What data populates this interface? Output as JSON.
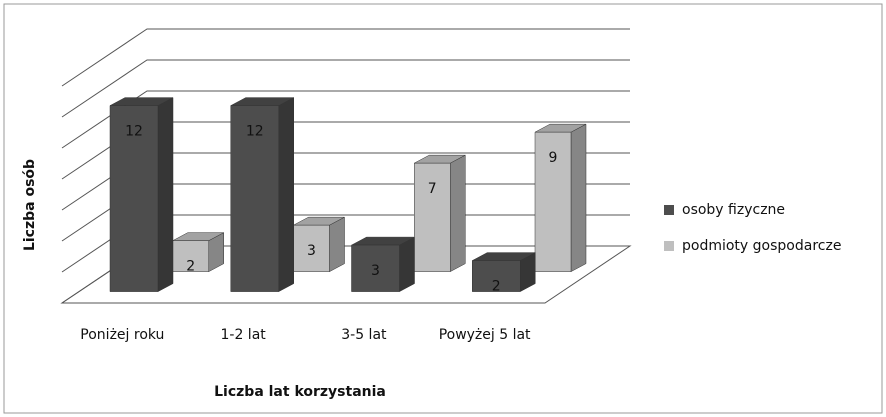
{
  "chart_data": {
    "type": "bar3d",
    "x_label": "Liczba lat korzystania",
    "y_label": "Liczba osób",
    "categories": [
      "Poniżej roku",
      "1-2 lat",
      "3-5 lat",
      "Powyżej 5 lat"
    ],
    "series": [
      {
        "name": "osoby fizyczne",
        "color": "#4d4d4d",
        "values": [
          12,
          12,
          3,
          2
        ]
      },
      {
        "name": "podmioty gospodarcze",
        "color": "#bfbfbf",
        "values": [
          2,
          3,
          7,
          9
        ]
      }
    ],
    "ylim": [
      0,
      14
    ],
    "yticks": [
      0,
      2,
      4,
      6,
      8,
      10,
      12,
      14
    ],
    "grid": true,
    "legend": "right"
  }
}
